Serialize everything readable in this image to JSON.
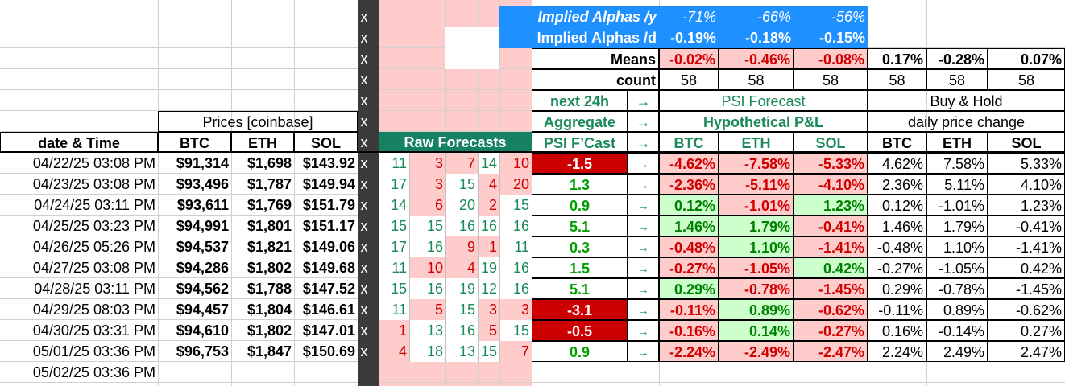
{
  "header": {
    "prices_label": "Prices [coinbase]",
    "date_time": "date & Time",
    "btc": "BTC",
    "eth": "ETH",
    "sol": "SOL",
    "raw_forecasts": "Raw Forecasts",
    "next24h": "next 24h",
    "aggregate": "Aggregate",
    "psi_fcast": "PSI F’Cast",
    "arrow": "→",
    "psi_forecast": "PSI Forecast",
    "hyp_pl": "Hypothetical P&L",
    "buy_hold": "Buy & Hold",
    "daily_change": "daily price change"
  },
  "alphas": {
    "yearly_label": "Implied Alphas /y",
    "daily_label": "Implied Alphas /d",
    "yearly": [
      "-71%",
      "-66%",
      "-56%"
    ],
    "daily": [
      "-0.19%",
      "-0.18%",
      "-0.15%"
    ]
  },
  "means": {
    "label": "Means",
    "psi": [
      "-0.02%",
      "-0.46%",
      "-0.08%"
    ],
    "bh": [
      "0.17%",
      "-0.28%",
      "0.07%"
    ]
  },
  "count": {
    "label": "count",
    "values": [
      "58",
      "58",
      "58",
      "58",
      "58",
      "58"
    ]
  },
  "x_marker": "x",
  "rows": [
    {
      "date": "04/22/25 03:08 PM",
      "btc": "$91,314",
      "eth": "$1,698",
      "sol": "$143.92",
      "raw": [
        "11",
        "3",
        "7",
        "14",
        "10"
      ],
      "fc": "-1.5",
      "fcneg": true,
      "p": [
        "-4.62%",
        "-7.58%",
        "-5.33%"
      ],
      "b": [
        "4.62%",
        "7.58%",
        "5.33%"
      ]
    },
    {
      "date": "04/23/25 03:08 PM",
      "btc": "$93,496",
      "eth": "$1,787",
      "sol": "$149.94",
      "raw": [
        "17",
        "3",
        "15",
        "4",
        "20"
      ],
      "fc": "1.3",
      "fcneg": false,
      "p": [
        "-2.36%",
        "-5.11%",
        "-4.10%"
      ],
      "b": [
        "2.36%",
        "5.11%",
        "4.10%"
      ]
    },
    {
      "date": "04/24/25 03:11 PM",
      "btc": "$93,611",
      "eth": "$1,769",
      "sol": "$151.79",
      "raw": [
        "14",
        "6",
        "20",
        "2",
        "15"
      ],
      "fc": "0.9",
      "fcneg": false,
      "p": [
        "0.12%",
        "-1.01%",
        "1.23%"
      ],
      "b": [
        "0.12%",
        "-1.01%",
        "1.23%"
      ]
    },
    {
      "date": "04/25/25 03:23 PM",
      "btc": "$94,991",
      "eth": "$1,801",
      "sol": "$151.17",
      "raw": [
        "15",
        "15",
        "16",
        "16",
        "16"
      ],
      "fc": "5.1",
      "fcneg": false,
      "p": [
        "1.46%",
        "1.79%",
        "-0.41%"
      ],
      "b": [
        "1.46%",
        "1.79%",
        "-0.41%"
      ]
    },
    {
      "date": "04/26/25 05:26 PM",
      "btc": "$94,537",
      "eth": "$1,821",
      "sol": "$149.06",
      "raw": [
        "17",
        "16",
        "9",
        "1",
        "11"
      ],
      "fc": "0.3",
      "fcneg": false,
      "p": [
        "-0.48%",
        "1.10%",
        "-1.41%"
      ],
      "b": [
        "-0.48%",
        "1.10%",
        "-1.41%"
      ]
    },
    {
      "date": "04/27/25 03:08 PM",
      "btc": "$94,286",
      "eth": "$1,802",
      "sol": "$149.68",
      "raw": [
        "11",
        "10",
        "4",
        "19",
        "16"
      ],
      "fc": "1.5",
      "fcneg": false,
      "p": [
        "-0.27%",
        "-1.05%",
        "0.42%"
      ],
      "b": [
        "-0.27%",
        "-1.05%",
        "0.42%"
      ]
    },
    {
      "date": "04/28/25 03:11 PM",
      "btc": "$94,562",
      "eth": "$1,788",
      "sol": "$147.52",
      "raw": [
        "15",
        "16",
        "19",
        "12",
        "16"
      ],
      "fc": "5.1",
      "fcneg": false,
      "p": [
        "0.29%",
        "-0.78%",
        "-1.45%"
      ],
      "b": [
        "0.29%",
        "-0.78%",
        "-1.45%"
      ]
    },
    {
      "date": "04/29/25 08:03 PM",
      "btc": "$94,457",
      "eth": "$1,804",
      "sol": "$146.61",
      "raw": [
        "11",
        "5",
        "15",
        "3",
        "3"
      ],
      "fc": "-3.1",
      "fcneg": true,
      "p": [
        "-0.11%",
        "0.89%",
        "-0.62%"
      ],
      "b": [
        "-0.11%",
        "0.89%",
        "-0.62%"
      ]
    },
    {
      "date": "04/30/25 03:31 PM",
      "btc": "$94,610",
      "eth": "$1,802",
      "sol": "$147.01",
      "raw": [
        "1",
        "13",
        "16",
        "5",
        "15"
      ],
      "fc": "-0.5",
      "fcneg": true,
      "p": [
        "-0.16%",
        "0.14%",
        "-0.27%"
      ],
      "b": [
        "0.16%",
        "-0.14%",
        "0.27%"
      ]
    },
    {
      "date": "05/01/25 03:36 PM",
      "btc": "$96,753",
      "eth": "$1,847",
      "sol": "$150.69",
      "raw": [
        "4",
        "18",
        "13",
        "15",
        "7"
      ],
      "fc": "0.9",
      "fcneg": false,
      "p": [
        "-2.24%",
        "-2.49%",
        "-2.47%"
      ],
      "b": [
        "2.24%",
        "2.49%",
        "2.47%"
      ]
    },
    {
      "date": "05/02/25 03:36 PM"
    }
  ],
  "raw_red": [
    [
      false,
      true,
      true,
      false,
      true
    ],
    [
      false,
      true,
      false,
      true,
      true
    ],
    [
      false,
      true,
      false,
      true,
      false
    ],
    [
      false,
      false,
      false,
      false,
      false
    ],
    [
      false,
      false,
      true,
      true,
      false
    ],
    [
      false,
      true,
      true,
      false,
      false
    ],
    [
      false,
      false,
      false,
      false,
      false
    ],
    [
      false,
      true,
      false,
      true,
      true
    ],
    [
      true,
      false,
      false,
      true,
      false
    ],
    [
      true,
      false,
      false,
      false,
      true
    ]
  ],
  "colors": {
    "pink": "#ffcccc",
    "blue": "#1e90ff",
    "teal": "#178163",
    "red": "#cc0000",
    "lightgreen": "#ccffcc"
  }
}
